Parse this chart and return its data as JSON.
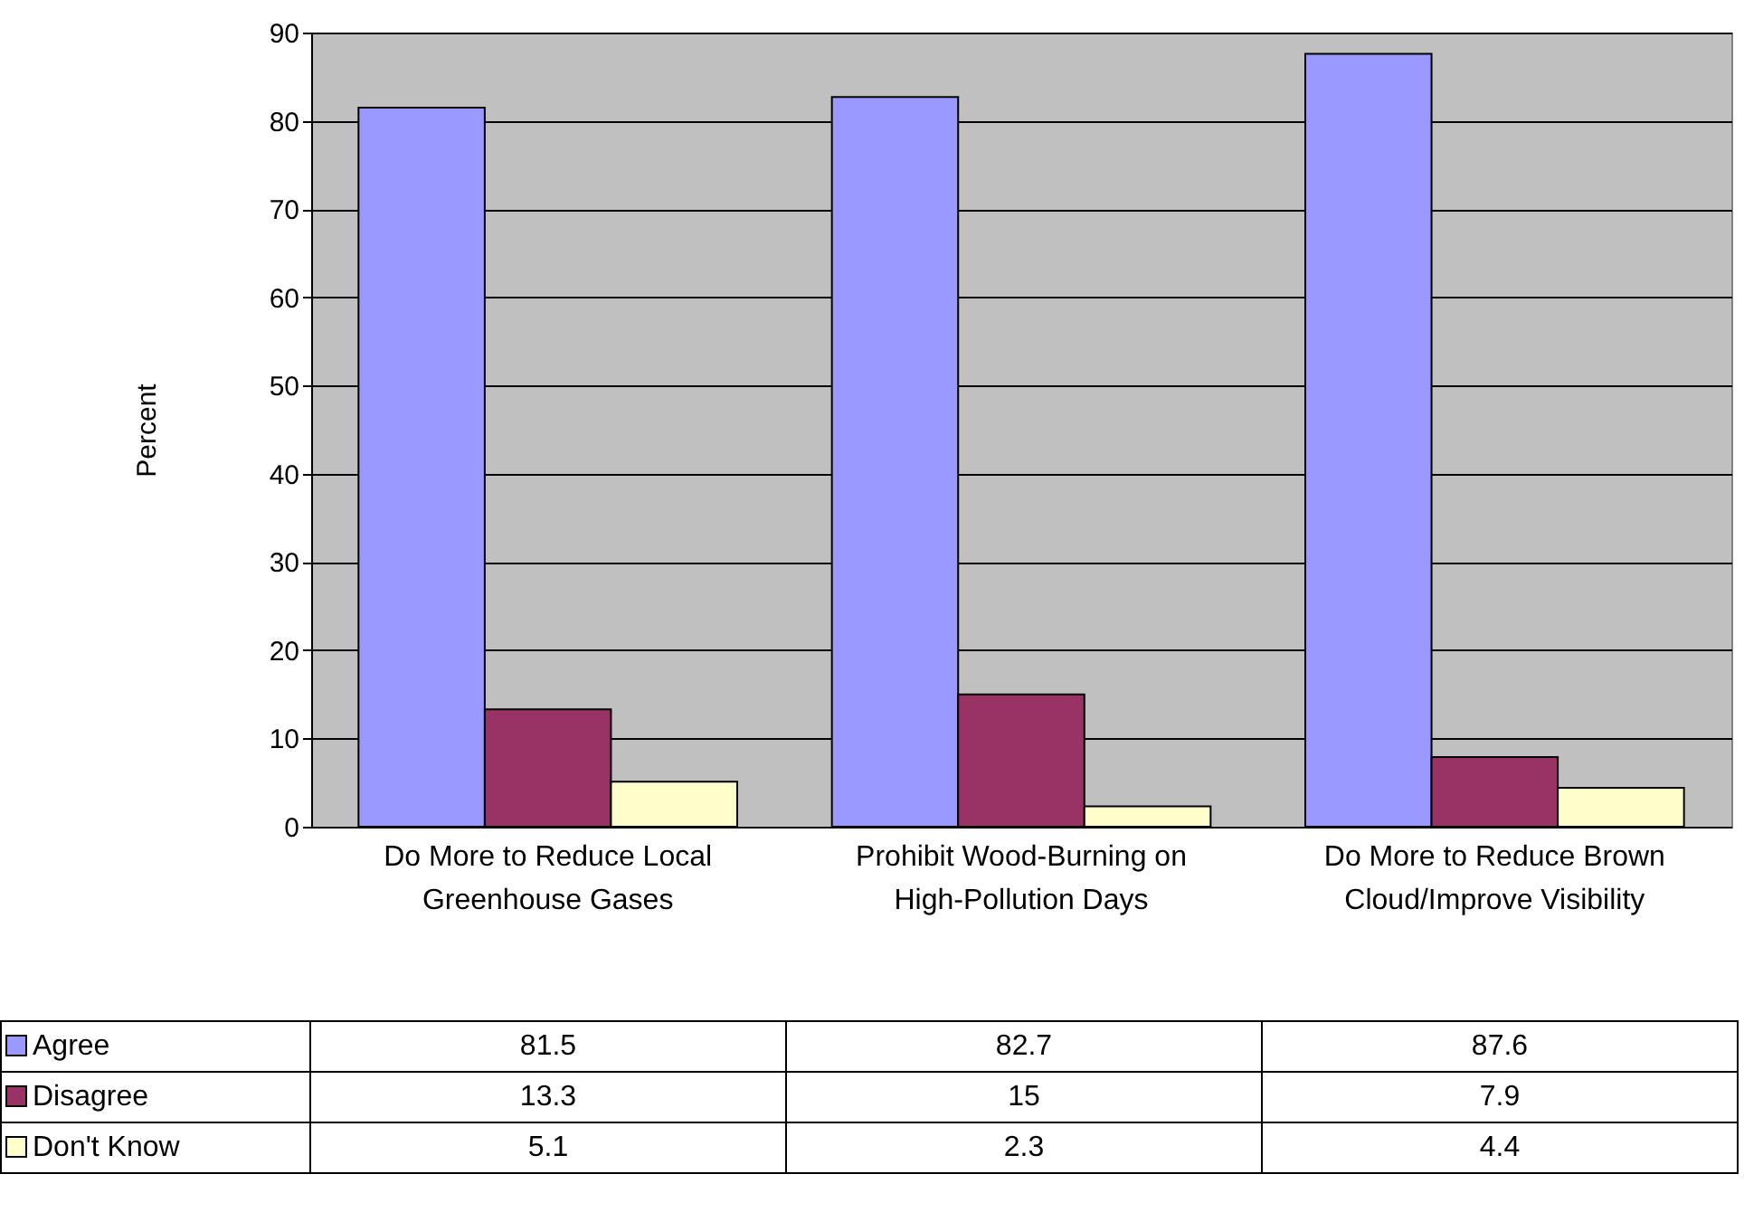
{
  "chart_data": {
    "type": "bar",
    "ylabel": "Percent",
    "categories": [
      "Do More to Reduce Local Greenhouse Gases",
      "Prohibit Wood-Burning on High-Pollution Days",
      "Do More to Reduce Brown Cloud/Improve Visibility"
    ],
    "series": [
      {
        "name": "Agree",
        "color": "#9999ff",
        "values": [
          81.5,
          82.7,
          87.6
        ]
      },
      {
        "name": "Disagree",
        "color": "#993366",
        "values": [
          13.3,
          15,
          7.9
        ]
      },
      {
        "name": "Don't Know",
        "color": "#ffffcc",
        "values": [
          5.1,
          2.3,
          4.4
        ]
      }
    ],
    "ylim": [
      0,
      90
    ],
    "yticks": [
      0,
      10,
      20,
      30,
      40,
      50,
      60,
      70,
      80,
      90
    ],
    "grid": "y",
    "legend": "bottom",
    "data_labels": true
  }
}
